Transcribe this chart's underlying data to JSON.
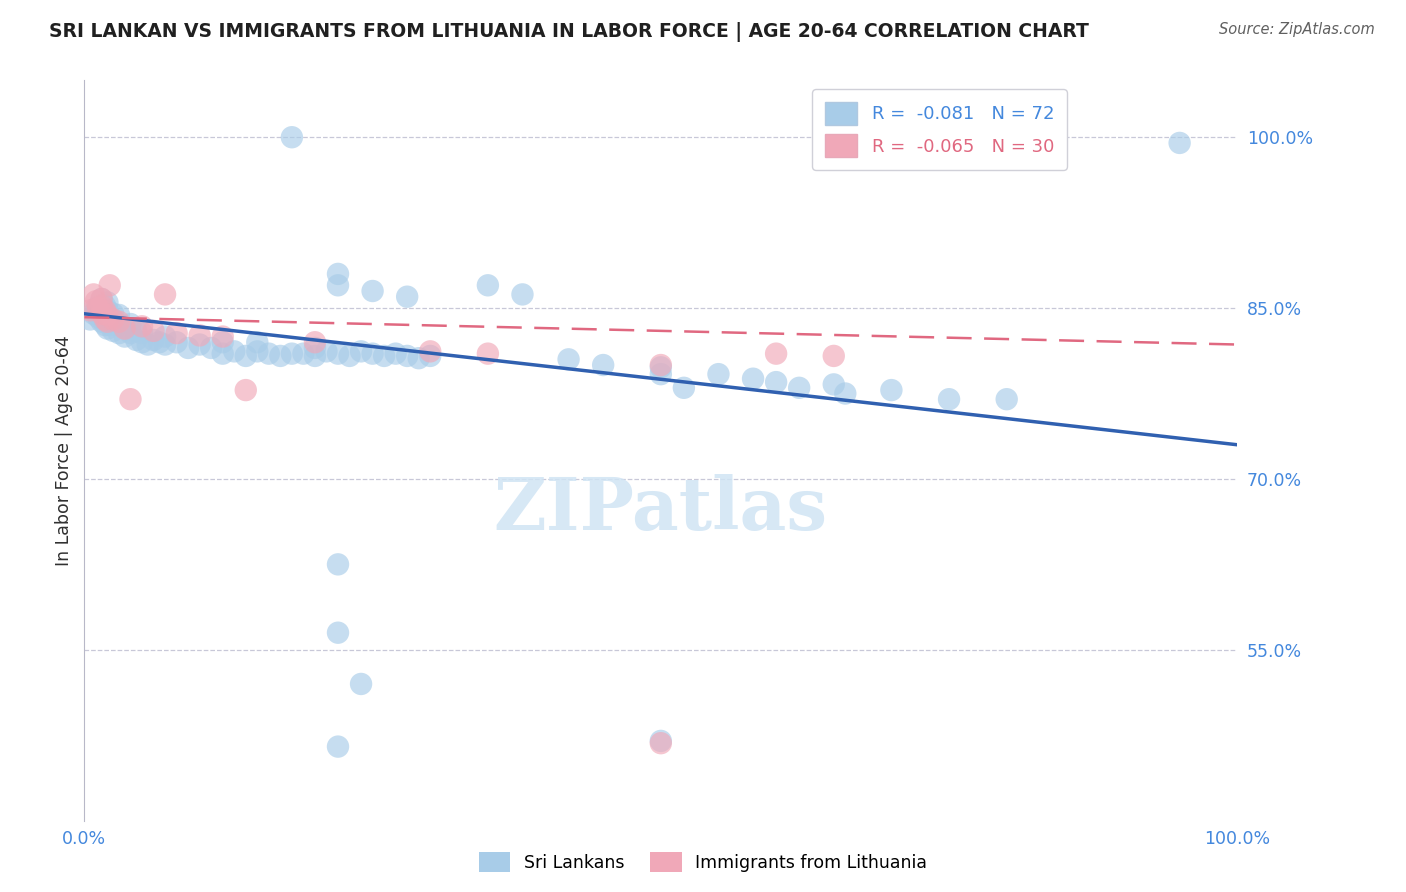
{
  "title": "SRI LANKAN VS IMMIGRANTS FROM LITHUANIA IN LABOR FORCE | AGE 20-64 CORRELATION CHART",
  "source": "Source: ZipAtlas.com",
  "ylabel": "In Labor Force | Age 20-64",
  "xlim": [
    0.0,
    1.0
  ],
  "ylim": [
    0.4,
    1.05
  ],
  "yticks": [
    0.55,
    0.7,
    0.85,
    1.0
  ],
  "ytick_labels": [
    "55.0%",
    "70.0%",
    "85.0%",
    "100.0%"
  ],
  "xticks": [
    0.0,
    1.0
  ],
  "xtick_labels": [
    "0.0%",
    "100.0%"
  ],
  "sri_lankans_color": "#a8cce8",
  "lithuania_color": "#f0a8b8",
  "trend_blue_color": "#3060b0",
  "trend_pink_color": "#e06880",
  "grid_color": "#c8c8d8",
  "background_color": "#ffffff",
  "title_color": "#202020",
  "axis_label_color": "#4488dd",
  "legend_box_color": "#4488dd",
  "sri_lankans": [
    [
      0.005,
      0.84
    ],
    [
      0.008,
      0.845
    ],
    [
      0.01,
      0.85
    ],
    [
      0.012,
      0.842
    ],
    [
      0.015,
      0.838
    ],
    [
      0.015,
      0.848
    ],
    [
      0.015,
      0.858
    ],
    [
      0.018,
      0.835
    ],
    [
      0.018,
      0.845
    ],
    [
      0.018,
      0.852
    ],
    [
      0.02,
      0.832
    ],
    [
      0.02,
      0.84
    ],
    [
      0.02,
      0.848
    ],
    [
      0.02,
      0.855
    ],
    [
      0.022,
      0.835
    ],
    [
      0.022,
      0.843
    ],
    [
      0.025,
      0.83
    ],
    [
      0.025,
      0.838
    ],
    [
      0.025,
      0.845
    ],
    [
      0.03,
      0.828
    ],
    [
      0.03,
      0.836
    ],
    [
      0.03,
      0.844
    ],
    [
      0.035,
      0.825
    ],
    [
      0.035,
      0.833
    ],
    [
      0.04,
      0.828
    ],
    [
      0.04,
      0.836
    ],
    [
      0.045,
      0.822
    ],
    [
      0.045,
      0.83
    ],
    [
      0.05,
      0.82
    ],
    [
      0.05,
      0.828
    ],
    [
      0.055,
      0.818
    ],
    [
      0.06,
      0.822
    ],
    [
      0.065,
      0.82
    ],
    [
      0.07,
      0.818
    ],
    [
      0.07,
      0.825
    ],
    [
      0.08,
      0.82
    ],
    [
      0.09,
      0.815
    ],
    [
      0.1,
      0.818
    ],
    [
      0.11,
      0.815
    ],
    [
      0.12,
      0.81
    ],
    [
      0.12,
      0.82
    ],
    [
      0.13,
      0.812
    ],
    [
      0.14,
      0.808
    ],
    [
      0.15,
      0.812
    ],
    [
      0.15,
      0.82
    ],
    [
      0.16,
      0.81
    ],
    [
      0.17,
      0.808
    ],
    [
      0.18,
      0.81
    ],
    [
      0.19,
      0.81
    ],
    [
      0.2,
      0.808
    ],
    [
      0.2,
      0.815
    ],
    [
      0.21,
      0.812
    ],
    [
      0.22,
      0.81
    ],
    [
      0.23,
      0.808
    ],
    [
      0.24,
      0.812
    ],
    [
      0.25,
      0.81
    ],
    [
      0.26,
      0.808
    ],
    [
      0.27,
      0.81
    ],
    [
      0.28,
      0.808
    ],
    [
      0.29,
      0.806
    ],
    [
      0.3,
      0.808
    ],
    [
      0.18,
      1.0
    ],
    [
      0.22,
      0.88
    ],
    [
      0.22,
      0.87
    ],
    [
      0.25,
      0.865
    ],
    [
      0.28,
      0.86
    ],
    [
      0.35,
      0.87
    ],
    [
      0.38,
      0.862
    ],
    [
      0.42,
      0.805
    ],
    [
      0.45,
      0.8
    ],
    [
      0.5,
      0.798
    ],
    [
      0.5,
      0.792
    ],
    [
      0.52,
      0.78
    ],
    [
      0.55,
      0.792
    ],
    [
      0.58,
      0.788
    ],
    [
      0.6,
      0.785
    ],
    [
      0.62,
      0.78
    ],
    [
      0.65,
      0.783
    ],
    [
      0.66,
      0.775
    ],
    [
      0.7,
      0.778
    ],
    [
      0.75,
      0.77
    ],
    [
      0.8,
      0.77
    ],
    [
      0.95,
      0.995
    ],
    [
      0.22,
      0.625
    ],
    [
      0.22,
      0.565
    ],
    [
      0.24,
      0.52
    ],
    [
      0.22,
      0.465
    ],
    [
      0.5,
      0.47
    ]
  ],
  "lithuanians": [
    [
      0.005,
      0.848
    ],
    [
      0.008,
      0.862
    ],
    [
      0.01,
      0.856
    ],
    [
      0.012,
      0.85
    ],
    [
      0.015,
      0.845
    ],
    [
      0.015,
      0.852
    ],
    [
      0.015,
      0.858
    ],
    [
      0.018,
      0.84
    ],
    [
      0.018,
      0.848
    ],
    [
      0.02,
      0.838
    ],
    [
      0.02,
      0.844
    ],
    [
      0.025,
      0.84
    ],
    [
      0.03,
      0.838
    ],
    [
      0.035,
      0.832
    ],
    [
      0.04,
      0.77
    ],
    [
      0.05,
      0.834
    ],
    [
      0.06,
      0.83
    ],
    [
      0.07,
      0.862
    ],
    [
      0.08,
      0.828
    ],
    [
      0.1,
      0.826
    ],
    [
      0.12,
      0.825
    ],
    [
      0.14,
      0.778
    ],
    [
      0.2,
      0.82
    ],
    [
      0.022,
      0.87
    ],
    [
      0.3,
      0.812
    ],
    [
      0.35,
      0.81
    ],
    [
      0.5,
      0.8
    ],
    [
      0.6,
      0.81
    ],
    [
      0.65,
      0.808
    ],
    [
      0.5,
      0.468
    ]
  ],
  "sl_trend_start": 0.845,
  "sl_trend_end": 0.73,
  "lt_trend_start": 0.842,
  "lt_trend_end": 0.818
}
